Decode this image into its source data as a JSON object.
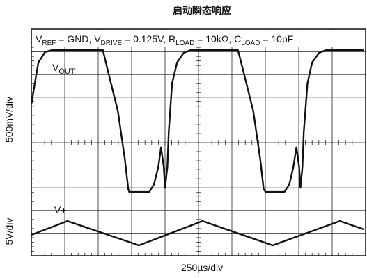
{
  "chart_data": {
    "type": "line",
    "title": "启动瞬态响应",
    "conditions": [
      {
        "main": "V",
        "sub": "REF",
        "rest": " = GND, "
      },
      {
        "main": "V",
        "sub": "DRIVE",
        "rest": " = 0.125V, "
      },
      {
        "main": "R",
        "sub": "LOAD",
        "rest": " = 10kΩ, "
      },
      {
        "main": "C",
        "sub": "LOAD",
        "rest": " = 10pF"
      }
    ],
    "xlabel": "250µs/div",
    "ylabels": [
      "500mV/div",
      "5V/div"
    ],
    "annotations": [
      {
        "main": "V",
        "sub": "OUT"
      },
      {
        "main": "V+"
      }
    ],
    "xlim": [
      0,
      10
    ],
    "ylim": [
      0,
      10
    ],
    "xticks": [
      0,
      1,
      2,
      3,
      4,
      5,
      6,
      7,
      8,
      9,
      10
    ],
    "yticks": [
      0,
      1,
      2,
      3,
      4,
      5,
      6,
      7,
      8,
      9,
      10
    ],
    "grid": true,
    "series": [
      {
        "color": "#111111",
        "x": [
          0,
          0.21,
          0.41,
          0.62,
          2.14,
          2.28,
          2.59,
          2.8,
          2.9,
          2.93,
          3.53,
          3.67,
          3.8,
          3.88,
          3.96,
          4.0,
          4.07,
          4.11,
          4.21,
          4.36,
          4.56,
          4.77,
          6.18,
          6.33,
          6.64,
          6.85,
          6.95,
          7.01,
          7.57,
          7.72,
          7.84,
          7.93,
          8.01,
          8.05,
          8.11,
          8.15,
          8.26,
          8.4,
          8.61,
          8.82,
          9.94
        ],
        "values": [
          6.69,
          8.53,
          8.99,
          9.08,
          9.08,
          8.22,
          6.38,
          4.23,
          2.94,
          2.82,
          2.82,
          3.16,
          3.93,
          4.79,
          3.93,
          3.0,
          3.93,
          5.46,
          7.61,
          8.53,
          8.96,
          9.08,
          9.08,
          8.22,
          6.38,
          4.23,
          2.94,
          2.82,
          2.82,
          3.16,
          3.93,
          4.79,
          3.93,
          3.0,
          3.93,
          5.46,
          7.61,
          8.53,
          8.96,
          9.08,
          9.08
        ]
      },
      {
        "color": "#111111",
        "x": [
          0,
          1.08,
          3.22,
          5.12,
          7.22,
          9.23,
          9.94
        ],
        "values": [
          0.92,
          1.53,
          0.46,
          1.53,
          0.46,
          1.53,
          1.17
        ]
      }
    ]
  }
}
